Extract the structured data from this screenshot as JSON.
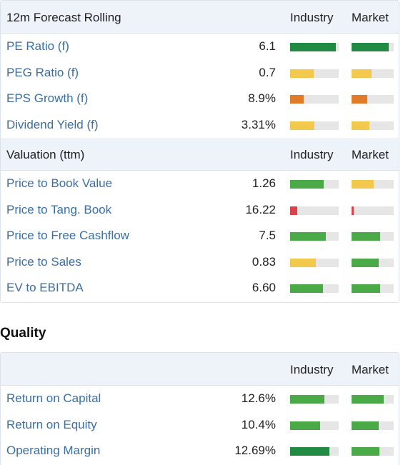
{
  "colors": {
    "dark_green": "#218a43",
    "green": "#4aaa48",
    "yellow": "#f2c94c",
    "orange": "#e07b2a",
    "red": "#d9434b",
    "link": "#3a6ea5",
    "header_bg": "#eef2f9"
  },
  "forecast": {
    "title": "12m Forecast Rolling",
    "industry_label": "Industry",
    "market_label": "Market",
    "rows": [
      {
        "label": "PE Ratio (f)",
        "value": "6.1",
        "industry": {
          "level": 0.94,
          "color": "dark_green"
        },
        "market": {
          "level": 0.88,
          "color": "dark_green"
        }
      },
      {
        "label": "PEG Ratio (f)",
        "value": "0.7",
        "industry": {
          "level": 0.48,
          "color": "yellow"
        },
        "market": {
          "level": 0.47,
          "color": "yellow"
        }
      },
      {
        "label": "EPS Growth (f)",
        "value": "8.9%",
        "industry": {
          "level": 0.28,
          "color": "orange"
        },
        "market": {
          "level": 0.37,
          "color": "orange"
        }
      },
      {
        "label": "Dividend Yield (f)",
        "value": "3.31%",
        "industry": {
          "level": 0.5,
          "color": "yellow"
        },
        "market": {
          "level": 0.42,
          "color": "yellow"
        }
      }
    ]
  },
  "valuation": {
    "title": "Valuation (ttm)",
    "industry_label": "Industry",
    "market_label": "Market",
    "rows": [
      {
        "label": "Price to Book Value",
        "value": "1.26",
        "industry": {
          "level": 0.69,
          "color": "green"
        },
        "market": {
          "level": 0.53,
          "color": "yellow"
        }
      },
      {
        "label": "Price to Tang. Book",
        "value": "16.22",
        "industry": {
          "level": 0.15,
          "color": "red"
        },
        "market": {
          "level": 0.05,
          "color": "red"
        }
      },
      {
        "label": "Price to Free Cashflow",
        "value": "7.5",
        "industry": {
          "level": 0.74,
          "color": "green"
        },
        "market": {
          "level": 0.68,
          "color": "green"
        }
      },
      {
        "label": "Price to Sales",
        "value": "0.83",
        "industry": {
          "level": 0.53,
          "color": "yellow"
        },
        "market": {
          "level": 0.64,
          "color": "green"
        }
      },
      {
        "label": "EV to EBITDA",
        "value": "6.60",
        "industry": {
          "level": 0.68,
          "color": "green"
        },
        "market": {
          "level": 0.68,
          "color": "green"
        }
      }
    ]
  },
  "quality": {
    "section_title": "Quality",
    "title": "",
    "industry_label": "Industry",
    "market_label": "Market",
    "rows": [
      {
        "label": "Return on Capital",
        "value": "12.6%",
        "industry": {
          "level": 0.71,
          "color": "green"
        },
        "market": {
          "level": 0.76,
          "color": "green"
        }
      },
      {
        "label": "Return on Equity",
        "value": "10.4%",
        "industry": {
          "level": 0.62,
          "color": "green"
        },
        "market": {
          "level": 0.64,
          "color": "green"
        }
      },
      {
        "label": "Operating Margin",
        "value": "12.69%",
        "industry": {
          "level": 0.81,
          "color": "dark_green"
        },
        "market": {
          "level": 0.66,
          "color": "green"
        }
      }
    ]
  }
}
